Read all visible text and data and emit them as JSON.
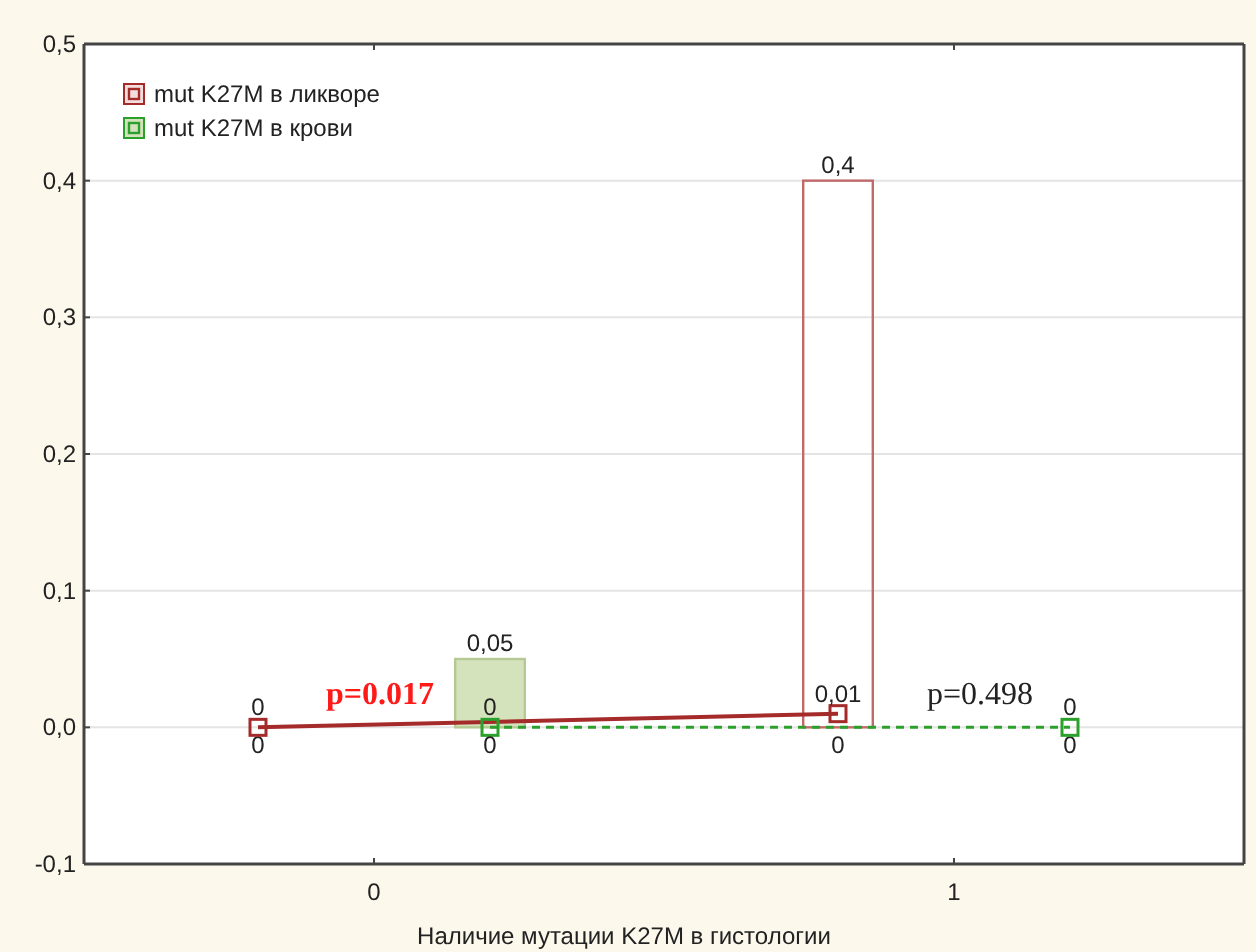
{
  "chart_data": {
    "type": "bar",
    "xlabel": "Наличие мутации K27M в гистологии",
    "xlim": [
      -0.5,
      1.5
    ],
    "xticks": [
      0,
      1
    ],
    "ylim": [
      -0.1,
      0.5
    ],
    "yticks": [
      {
        "value": -0.1,
        "label": "-0,1"
      },
      {
        "value": 0,
        "label": "0,0"
      },
      {
        "value": 0.1,
        "label": "0,1"
      },
      {
        "value": 0.2,
        "label": "0,2"
      },
      {
        "value": 0.3,
        "label": "0,3"
      },
      {
        "value": 0.4,
        "label": "0,4"
      },
      {
        "value": 0.5,
        "label": "0,5"
      }
    ],
    "grid": "y",
    "legend": "top left",
    "marker": "square",
    "series": [
      {
        "color": "#c06a6a",
        "x": [
          -0.2,
          0.8
        ],
        "values": [
          0,
          0.4
        ],
        "value_labels": [
          "0",
          "0,4"
        ]
      },
      {
        "color": "#d5e3bd",
        "x": [
          0.2,
          1.2
        ],
        "values": [
          0.05,
          0
        ],
        "value_labels": [
          "0,05",
          "0"
        ]
      },
      {
        "type": "line",
        "name": "mut K27M в ликворе",
        "color": "#a52a2a",
        "line_style": "solid",
        "x": [
          -0.2,
          0.8
        ],
        "values": [
          0,
          0.01
        ],
        "value_labels": [
          "0",
          "0,01"
        ]
      },
      {
        "type": "line",
        "name": "mut K27M в крови",
        "color": "#2ca02c",
        "line_style": "dashed",
        "x": [
          0.2,
          1.2
        ],
        "values": [
          0,
          0
        ],
        "value_labels": [
          "0",
          "0"
        ]
      }
    ],
    "annotations": [
      "p=0.017",
      "p=0.498",
      {
        "text": "0",
        "x": 0.8,
        "y": 0
      },
      {
        "text": "0",
        "x": 0.2,
        "y": 0
      }
    ]
  }
}
